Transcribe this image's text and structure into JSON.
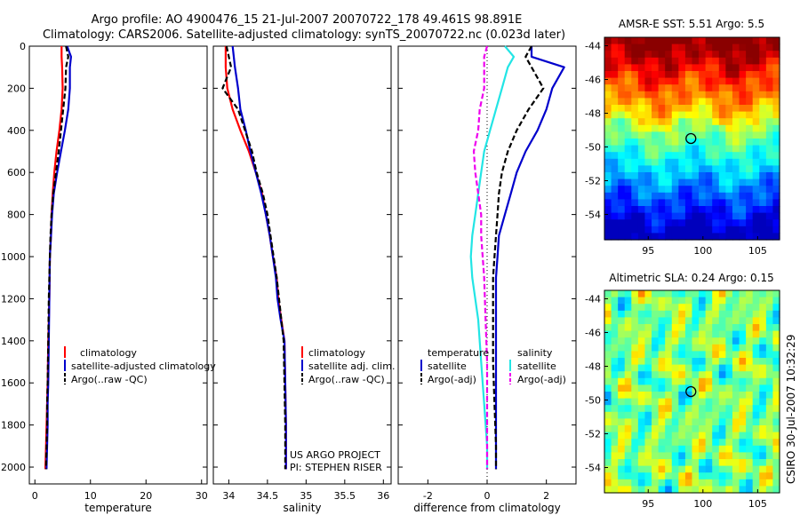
{
  "header": {
    "line1": "Argo profile: AO 4900476_15 21-Jul-2007 20070722_178 49.461S 98.891E",
    "line2": "Climatology: CARS2006. Satellite-adjusted climatology: synTS_20070722.nc (0.023d later)"
  },
  "side_stamp": "CSIRO 30-Jul-2007 10:32:29",
  "project_text": [
    "US ARGO PROJECT",
    "PI: STEPHEN RISER"
  ],
  "colors": {
    "red": "#ff0000",
    "blue": "#0000cc",
    "black": "#000000",
    "cyan": "#22e5e5",
    "magenta": "#ee00ee"
  },
  "chart_data": [
    {
      "type": "line",
      "name": "temperature",
      "xlabel": "temperature",
      "xlim": [
        -1,
        31
      ],
      "ylim": [
        2080,
        0
      ],
      "xticks": [
        0,
        10,
        20,
        30
      ],
      "yticks": [
        0,
        200,
        400,
        600,
        800,
        1000,
        1200,
        1400,
        1600,
        1800,
        2000
      ],
      "legend": [
        "climatology",
        "satellite-adjusted climatology",
        "Argo(..raw -QC)"
      ],
      "series": [
        {
          "name": "climatology",
          "color": "red",
          "dash": "",
          "x": [
            4.8,
            4.8,
            4.9,
            5.0,
            4.8,
            4.4,
            3.9,
            3.5,
            3.2,
            3.0,
            2.9,
            2.7,
            2.6,
            2.4,
            2.3,
            2.2,
            2.1,
            2.0,
            1.9,
            1.9
          ],
          "y": [
            0,
            50,
            100,
            200,
            300,
            400,
            500,
            600,
            700,
            800,
            900,
            1000,
            1200,
            1400,
            1600,
            1700,
            1800,
            1900,
            2000,
            2010
          ]
        },
        {
          "name": "satellite-adjusted climatology",
          "color": "blue",
          "dash": "",
          "x": [
            5.8,
            6.5,
            6.3,
            6.3,
            6.0,
            5.4,
            4.7,
            4.0,
            3.4,
            3.1,
            2.9,
            2.7,
            2.6,
            2.5,
            2.4,
            2.3,
            2.3,
            2.2,
            2.1,
            2.1
          ],
          "y": [
            0,
            50,
            100,
            200,
            300,
            400,
            500,
            600,
            700,
            800,
            900,
            1000,
            1200,
            1400,
            1600,
            1700,
            1800,
            1900,
            2000,
            2010
          ]
        },
        {
          "name": "Argo(..raw -QC)",
          "color": "black",
          "dash": "6,3",
          "x": [
            5.6,
            6.0,
            5.6,
            5.5,
            5.1,
            4.7,
            4.3,
            3.8,
            3.3,
            3.0,
            2.8,
            2.7,
            2.5,
            2.4,
            2.3,
            2.2,
            2.2,
            2.1,
            2.0,
            2.0
          ],
          "y": [
            0,
            50,
            100,
            200,
            300,
            400,
            500,
            600,
            700,
            800,
            900,
            1000,
            1200,
            1400,
            1600,
            1700,
            1800,
            1900,
            2000,
            2010
          ]
        }
      ]
    },
    {
      "type": "line",
      "name": "salinity",
      "xlabel": "salinity",
      "xlim": [
        33.8,
        36.1
      ],
      "ylim": [
        2080,
        0
      ],
      "xticks": [
        34,
        34.5,
        35,
        35.5,
        36
      ],
      "xticklabels": [
        "34",
        "34.5",
        "35",
        "35.5",
        "36"
      ],
      "legend": [
        "climatology",
        "satellite adj. clim.",
        "Argo(..raw -QC)"
      ],
      "series": [
        {
          "name": "climatology",
          "color": "red",
          "dash": "",
          "x": [
            33.96,
            33.96,
            33.98,
            34.05,
            34.15,
            34.26,
            34.35,
            34.43,
            34.48,
            34.53,
            34.57,
            34.62,
            34.64,
            34.68,
            34.72,
            34.73,
            34.74,
            34.74,
            34.74
          ],
          "y": [
            0,
            100,
            200,
            300,
            400,
            500,
            600,
            700,
            800,
            900,
            1000,
            1100,
            1200,
            1300,
            1400,
            1600,
            1800,
            2000,
            2010
          ]
        },
        {
          "name": "satellite adj. clim.",
          "color": "blue",
          "dash": "",
          "x": [
            34.05,
            34.08,
            34.12,
            34.15,
            34.22,
            34.28,
            34.35,
            34.42,
            34.48,
            34.53,
            34.57,
            34.61,
            34.63,
            34.67,
            34.72,
            34.73,
            34.74,
            34.74,
            34.74
          ],
          "y": [
            0,
            100,
            200,
            300,
            400,
            500,
            600,
            700,
            800,
            900,
            1000,
            1100,
            1200,
            1300,
            1400,
            1600,
            1800,
            2000,
            2010
          ]
        },
        {
          "name": "Argo(..raw -QC)",
          "color": "black",
          "dash": "6,3",
          "x": [
            33.97,
            34.03,
            33.92,
            34.12,
            34.21,
            34.3,
            34.36,
            34.44,
            34.5,
            34.54,
            34.58,
            34.62,
            34.65,
            34.68,
            34.71,
            34.72,
            34.73,
            34.73,
            34.73
          ],
          "y": [
            0,
            100,
            200,
            300,
            400,
            500,
            600,
            700,
            800,
            900,
            1000,
            1100,
            1200,
            1300,
            1400,
            1600,
            1800,
            2000,
            2010
          ]
        }
      ]
    },
    {
      "type": "line",
      "name": "difference",
      "xlabel": "difference from climatology",
      "xlim": [
        -3,
        3
      ],
      "ylim": [
        2080,
        0
      ],
      "xticks": [
        -2,
        0,
        2
      ],
      "legend_left_title": "temperature",
      "legend_left": [
        "satellite",
        "Argo(-adj)"
      ],
      "legend_right_title": "salinity",
      "legend_right": [
        "satellite",
        "Argo(-adj)"
      ],
      "series": [
        {
          "name": "temperature satellite",
          "color": "blue",
          "dash": "",
          "x": [
            1.5,
            1.5,
            2.6,
            2.2,
            2.0,
            1.7,
            1.3,
            1.0,
            0.8,
            0.6,
            0.4,
            0.35,
            0.3,
            0.3,
            0.3,
            0.3,
            0.3,
            0.3
          ],
          "y": [
            0,
            50,
            100,
            200,
            300,
            400,
            500,
            600,
            700,
            800,
            900,
            1000,
            1100,
            1300,
            1500,
            1700,
            1900,
            2010
          ]
        },
        {
          "name": "temperature Argo(-adj)",
          "color": "black",
          "dash": "6,3",
          "x": [
            1.5,
            1.3,
            1.5,
            1.9,
            1.4,
            1.0,
            0.7,
            0.5,
            0.4,
            0.35,
            0.3,
            0.25,
            0.2,
            0.2,
            0.2,
            0.25,
            0.3,
            0.3
          ],
          "y": [
            0,
            50,
            100,
            200,
            300,
            400,
            500,
            600,
            700,
            800,
            900,
            1000,
            1100,
            1300,
            1500,
            1700,
            1900,
            2010
          ]
        },
        {
          "name": "salinity satellite",
          "color": "cyan",
          "dash": "",
          "x": [
            0.6,
            0.9,
            0.7,
            0.5,
            0.3,
            0.1,
            -0.1,
            -0.2,
            -0.3,
            -0.4,
            -0.5,
            -0.55,
            -0.5,
            -0.3,
            -0.2,
            -0.1,
            0.0,
            0.0
          ],
          "y": [
            0,
            50,
            100,
            200,
            300,
            400,
            500,
            600,
            700,
            800,
            900,
            1000,
            1100,
            1300,
            1500,
            1700,
            1900,
            2010
          ]
        },
        {
          "name": "salinity Argo(-adj)",
          "color": "magenta",
          "dash": "6,3",
          "x": [
            0.0,
            -0.1,
            -0.1,
            -0.1,
            -0.25,
            -0.3,
            -0.45,
            -0.4,
            -0.3,
            -0.2,
            -0.2,
            -0.15,
            -0.1,
            -0.05,
            0.0,
            0.0,
            0.0,
            0.0
          ],
          "y": [
            0,
            50,
            100,
            200,
            300,
            400,
            500,
            600,
            700,
            800,
            900,
            1000,
            1100,
            1300,
            1500,
            1700,
            1900,
            2010
          ]
        }
      ]
    },
    {
      "type": "heatmap",
      "name": "sst_map",
      "title": "AMSR-E SST: 5.51 Argo: 5.5",
      "xlim": [
        91,
        107
      ],
      "ylim": [
        -55.5,
        -43.5
      ],
      "xticks": [
        95,
        100,
        105
      ],
      "yticks": [
        -44,
        -46,
        -48,
        -50,
        -52,
        -54
      ],
      "marker": {
        "lon": 98.9,
        "lat": -49.5
      }
    },
    {
      "type": "heatmap",
      "name": "sla_map",
      "title": "Altimetric SLA: 0.24 Argo: 0.15",
      "xlim": [
        91,
        107
      ],
      "ylim": [
        -55.5,
        -43.5
      ],
      "xticks": [
        95,
        100,
        105
      ],
      "yticks": [
        -44,
        -46,
        -48,
        -50,
        -52,
        -54
      ],
      "marker": {
        "lon": 98.9,
        "lat": -49.5
      }
    }
  ]
}
